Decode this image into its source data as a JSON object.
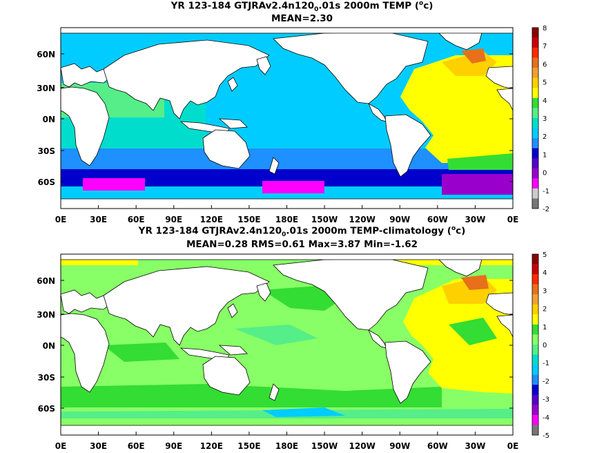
{
  "panels": [
    {
      "title_pre": "YR 123-184 GTJRAv2.4n120",
      "title_sub": "0",
      "title_post": ".01s 2000m TEMP (",
      "title_deg": "o",
      "title_end": "c)",
      "stats": "MEAN=2.30",
      "colorbar": {
        "labels": [
          "8",
          "7",
          "6",
          "5",
          "4",
          "3",
          "2",
          "1",
          "0",
          "-1",
          "-2"
        ],
        "colors": [
          "#8b0000",
          "#cc0000",
          "#ff2a00",
          "#e8701a",
          "#f0a030",
          "#ffd000",
          "#ffff00",
          "#33dd33",
          "#55ee88",
          "#00ddcc",
          "#00ccff",
          "#1e90ff",
          "#0000cc",
          "#5500cc",
          "#9900cc",
          "#ff00ff",
          "#cccccc",
          "#777777"
        ]
      }
    },
    {
      "title_pre": "YR 123-184 GTJRAv2.4n120",
      "title_sub": "0",
      "title_post": ".01s 2000m TEMP-climatology (",
      "title_deg": "o",
      "title_end": "c)",
      "stats": "MEAN=0.28   RMS=0.61   Max=3.87   Min=-1.62",
      "colorbar": {
        "labels": [
          "5",
          "4",
          "3",
          "2",
          "1",
          "0",
          "-1",
          "-2",
          "-3",
          "-4",
          "-5"
        ],
        "colors": [
          "#8b0000",
          "#cc0000",
          "#ff2a00",
          "#e8701a",
          "#f0a030",
          "#ffd000",
          "#ffff00",
          "#33dd33",
          "#88ff66",
          "#55ee88",
          "#00ddcc",
          "#00ccff",
          "#1e90ff",
          "#0000cc",
          "#5500cc",
          "#9900cc",
          "#ff00ff",
          "#777777"
        ]
      }
    }
  ],
  "lat_labels": [
    "60N",
    "30N",
    "0N",
    "30S",
    "60S"
  ],
  "lon_labels": [
    "0E",
    "30E",
    "60E",
    "90E",
    "120E",
    "150E",
    "180E",
    "150W",
    "120W",
    "90W",
    "60W",
    "30W",
    "0E"
  ],
  "field_colors": {
    "top": {
      "pacific": "#00ccff",
      "indian": "#00ddcc",
      "south_band": "#1e90ff",
      "antarctic": "#0000cc",
      "weddell": "#9900cc",
      "ross": "#ff00ff",
      "atlantic": "#ffff00",
      "atl_warm": "#ffd000",
      "nordic": "#e8701a",
      "med": "#cc0000",
      "atl_green": "#33dd33",
      "indian_n": "#55ee88"
    },
    "bottom": {
      "base": "#88ff66",
      "green": "#33dd33",
      "cyan": "#55ee88",
      "blue": "#00ccff",
      "atlantic": "#ffff00",
      "atl_warm": "#ffd000",
      "nordic": "#e8701a",
      "arctic": "#ffff00"
    }
  }
}
